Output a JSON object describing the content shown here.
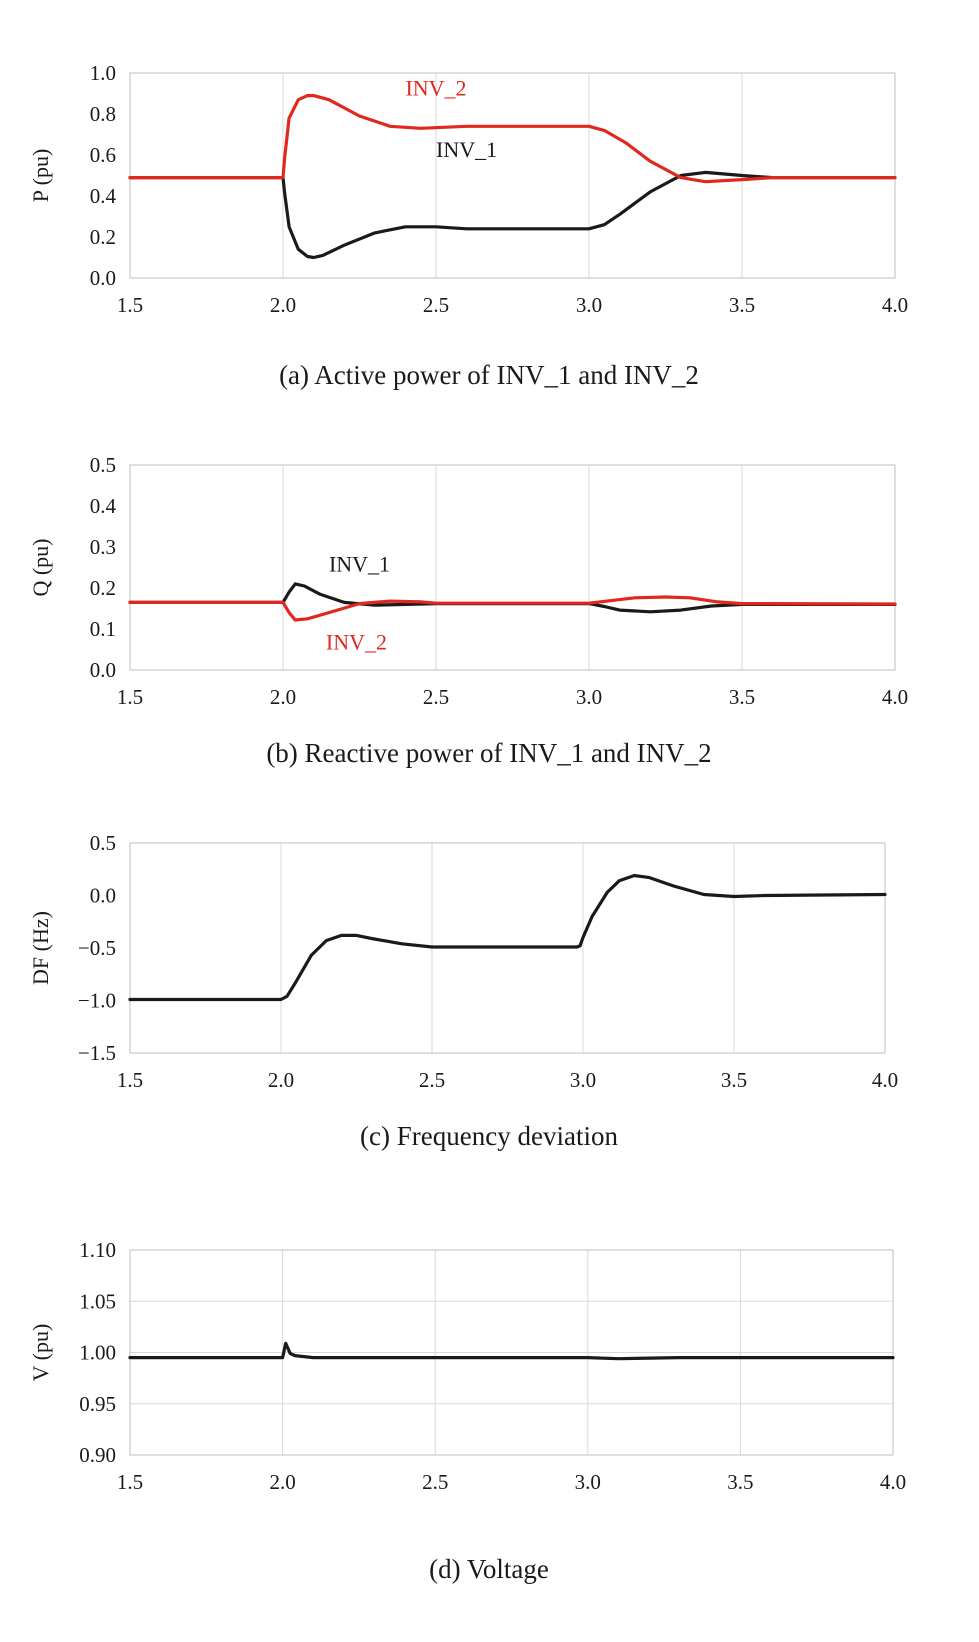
{
  "colors": {
    "inv_1": "#1a1a1a",
    "inv_2": "#e0281f",
    "grid": "#d9d9d9",
    "frame": "#bfbfbf"
  },
  "chart_data": [
    {
      "id": "a",
      "type": "line",
      "caption": "(a) Active power of INV_1 and INV_2",
      "ylabel": "P (pu)",
      "xlabel": "",
      "xlim": [
        1.5,
        4.0
      ],
      "ylim": [
        0.0,
        1.0
      ],
      "xticks": [
        "1.5",
        "2.0",
        "2.5",
        "3.0",
        "3.5",
        "4.0"
      ],
      "yticks": [
        "0.0",
        "0.2",
        "0.4",
        "0.6",
        "0.8",
        "1.0"
      ],
      "grid": "vertical",
      "series": [
        {
          "name": "INV_1",
          "color": "#1a1a1a",
          "points": [
            [
              1.5,
              0.49
            ],
            [
              2.0,
              0.49
            ],
            [
              2.005,
              0.42
            ],
            [
              2.02,
              0.25
            ],
            [
              2.05,
              0.14
            ],
            [
              2.08,
              0.105
            ],
            [
              2.1,
              0.1
            ],
            [
              2.13,
              0.11
            ],
            [
              2.2,
              0.16
            ],
            [
              2.3,
              0.22
            ],
            [
              2.4,
              0.25
            ],
            [
              2.5,
              0.25
            ],
            [
              2.6,
              0.24
            ],
            [
              3.0,
              0.24
            ],
            [
              3.05,
              0.26
            ],
            [
              3.1,
              0.31
            ],
            [
              3.2,
              0.42
            ],
            [
              3.3,
              0.5
            ],
            [
              3.38,
              0.515
            ],
            [
              3.5,
              0.5
            ],
            [
              3.6,
              0.49
            ],
            [
              4.0,
              0.49
            ]
          ]
        },
        {
          "name": "INV_2",
          "color": "#e0281f",
          "points": [
            [
              1.5,
              0.49
            ],
            [
              2.0,
              0.49
            ],
            [
              2.005,
              0.58
            ],
            [
              2.02,
              0.78
            ],
            [
              2.05,
              0.87
            ],
            [
              2.08,
              0.89
            ],
            [
              2.1,
              0.89
            ],
            [
              2.15,
              0.87
            ],
            [
              2.25,
              0.79
            ],
            [
              2.35,
              0.74
            ],
            [
              2.45,
              0.73
            ],
            [
              2.6,
              0.74
            ],
            [
              3.0,
              0.74
            ],
            [
              3.05,
              0.72
            ],
            [
              3.12,
              0.66
            ],
            [
              3.2,
              0.57
            ],
            [
              3.3,
              0.49
            ],
            [
              3.38,
              0.47
            ],
            [
              3.5,
              0.48
            ],
            [
              3.6,
              0.49
            ],
            [
              4.0,
              0.49
            ]
          ]
        }
      ],
      "annotations": [
        {
          "text": "INV_2",
          "x": 2.5,
          "y": 0.89,
          "color": "#e0281f"
        },
        {
          "text": "INV_1",
          "x": 2.6,
          "y": 0.59,
          "color": "#1a1a1a"
        }
      ]
    },
    {
      "id": "b",
      "type": "line",
      "caption": "(b) Reactive power of INV_1 and INV_2",
      "ylabel": "Q (pu)",
      "xlabel": "",
      "xlim": [
        1.5,
        4.0
      ],
      "ylim": [
        0.0,
        0.5
      ],
      "xticks": [
        "1.5",
        "2.0",
        "2.5",
        "3.0",
        "3.5",
        "4.0"
      ],
      "yticks": [
        "0.0",
        "0.1",
        "0.2",
        "0.3",
        "0.4",
        "0.5"
      ],
      "grid": "vertical",
      "series": [
        {
          "name": "INV_1",
          "color": "#1a1a1a",
          "points": [
            [
              1.5,
              0.165
            ],
            [
              2.0,
              0.165
            ],
            [
              2.02,
              0.19
            ],
            [
              2.04,
              0.21
            ],
            [
              2.07,
              0.205
            ],
            [
              2.12,
              0.185
            ],
            [
              2.2,
              0.165
            ],
            [
              2.3,
              0.158
            ],
            [
              2.5,
              0.162
            ],
            [
              3.0,
              0.162
            ],
            [
              3.05,
              0.155
            ],
            [
              3.1,
              0.146
            ],
            [
              3.2,
              0.142
            ],
            [
              3.3,
              0.146
            ],
            [
              3.4,
              0.156
            ],
            [
              3.5,
              0.16
            ],
            [
              4.0,
              0.16
            ]
          ]
        },
        {
          "name": "INV_2",
          "color": "#e0281f",
          "points": [
            [
              1.5,
              0.165
            ],
            [
              2.0,
              0.165
            ],
            [
              2.02,
              0.14
            ],
            [
              2.04,
              0.122
            ],
            [
              2.08,
              0.125
            ],
            [
              2.15,
              0.14
            ],
            [
              2.25,
              0.162
            ],
            [
              2.35,
              0.168
            ],
            [
              2.45,
              0.166
            ],
            [
              2.5,
              0.163
            ],
            [
              3.0,
              0.163
            ],
            [
              3.08,
              0.17
            ],
            [
              3.15,
              0.176
            ],
            [
              3.25,
              0.178
            ],
            [
              3.33,
              0.176
            ],
            [
              3.42,
              0.166
            ],
            [
              3.5,
              0.162
            ],
            [
              4.0,
              0.161
            ]
          ]
        }
      ],
      "annotations": [
        {
          "text": "INV_1",
          "x": 2.25,
          "y": 0.24,
          "color": "#1a1a1a"
        },
        {
          "text": "INV_2",
          "x": 2.24,
          "y": 0.05,
          "color": "#e0281f"
        }
      ]
    },
    {
      "id": "c",
      "type": "line",
      "caption": "(c) Frequency deviation",
      "ylabel": "DF (Hz)",
      "xlabel": "",
      "xlim": [
        1.5,
        4.0
      ],
      "ylim": [
        -1.5,
        0.5
      ],
      "xticks": [
        "1.5",
        "2.0",
        "2.5",
        "3.0",
        "3.5",
        "4.0"
      ],
      "yticks": [
        "−1.5",
        "−1.0",
        "−0.5",
        "0.0",
        "0.5"
      ],
      "grid": "vertical",
      "series": [
        {
          "name": "DF",
          "color": "#1a1a1a",
          "points": [
            [
              1.5,
              -0.99
            ],
            [
              2.0,
              -0.99
            ],
            [
              2.02,
              -0.96
            ],
            [
              2.05,
              -0.82
            ],
            [
              2.1,
              -0.57
            ],
            [
              2.15,
              -0.43
            ],
            [
              2.2,
              -0.38
            ],
            [
              2.25,
              -0.38
            ],
            [
              2.3,
              -0.41
            ],
            [
              2.4,
              -0.46
            ],
            [
              2.5,
              -0.49
            ],
            [
              2.6,
              -0.49
            ],
            [
              2.98,
              -0.49
            ],
            [
              2.99,
              -0.48
            ],
            [
              3.0,
              -0.4
            ],
            [
              3.03,
              -0.2
            ],
            [
              3.08,
              0.03
            ],
            [
              3.12,
              0.14
            ],
            [
              3.17,
              0.19
            ],
            [
              3.22,
              0.17
            ],
            [
              3.3,
              0.09
            ],
            [
              3.4,
              0.01
            ],
            [
              3.5,
              -0.01
            ],
            [
              3.6,
              0.0
            ],
            [
              4.0,
              0.01
            ]
          ]
        }
      ],
      "annotations": []
    },
    {
      "id": "d",
      "type": "line",
      "caption": "(d) Voltage",
      "ylabel": "V (pu)",
      "xlabel": "",
      "xlim": [
        1.5,
        4.0
      ],
      "ylim": [
        0.9,
        1.1
      ],
      "xticks": [
        "1.5",
        "2.0",
        "2.5",
        "3.0",
        "3.5",
        "4.0"
      ],
      "yticks": [
        "0.90",
        "0.95",
        "1.00",
        "1.05",
        "1.10"
      ],
      "grid": "both",
      "series": [
        {
          "name": "V",
          "color": "#1a1a1a",
          "points": [
            [
              1.5,
              0.995
            ],
            [
              2.0,
              0.995
            ],
            [
              2.01,
              1.009
            ],
            [
              2.025,
              0.999
            ],
            [
              2.04,
              0.997
            ],
            [
              2.1,
              0.995
            ],
            [
              2.5,
              0.995
            ],
            [
              3.0,
              0.995
            ],
            [
              3.1,
              0.994
            ],
            [
              3.3,
              0.995
            ],
            [
              4.0,
              0.995
            ]
          ]
        }
      ],
      "annotations": []
    }
  ]
}
